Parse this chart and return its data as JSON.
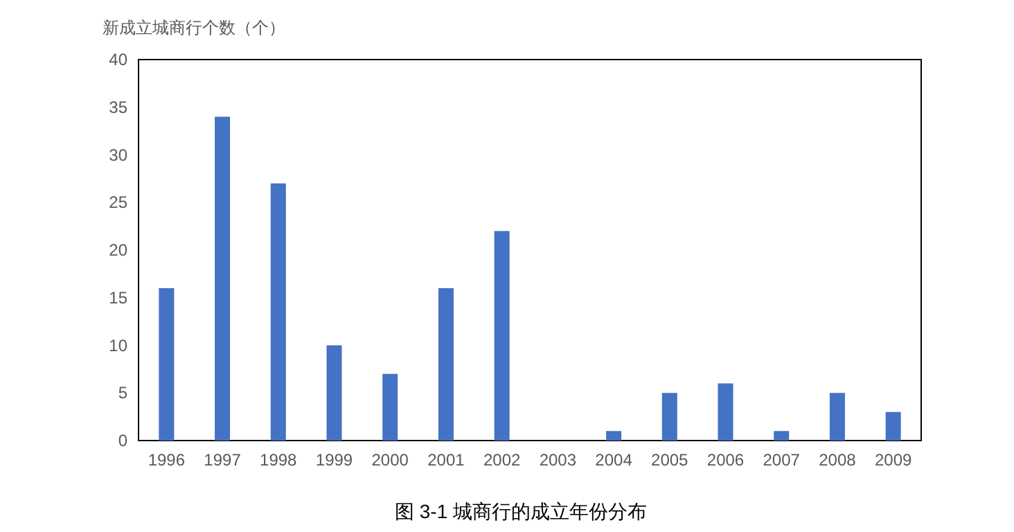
{
  "chart_data": {
    "type": "bar",
    "ylabel": "新成立城商行个数（个）",
    "annotations": [
      "图 3-1 城商行的成立年份分布"
    ],
    "categories": [
      "1996",
      "1997",
      "1998",
      "1999",
      "2000",
      "2001",
      "2002",
      "2003",
      "2004",
      "2005",
      "2006",
      "2007",
      "2008",
      "2009"
    ],
    "values": [
      16,
      34,
      27,
      10,
      7,
      16,
      22,
      0,
      1,
      5,
      6,
      1,
      5,
      3
    ],
    "color": "#4472c4",
    "ylim": [
      0,
      40
    ],
    "yticks": [
      0,
      5,
      10,
      15,
      20,
      25,
      30,
      35,
      40
    ]
  }
}
